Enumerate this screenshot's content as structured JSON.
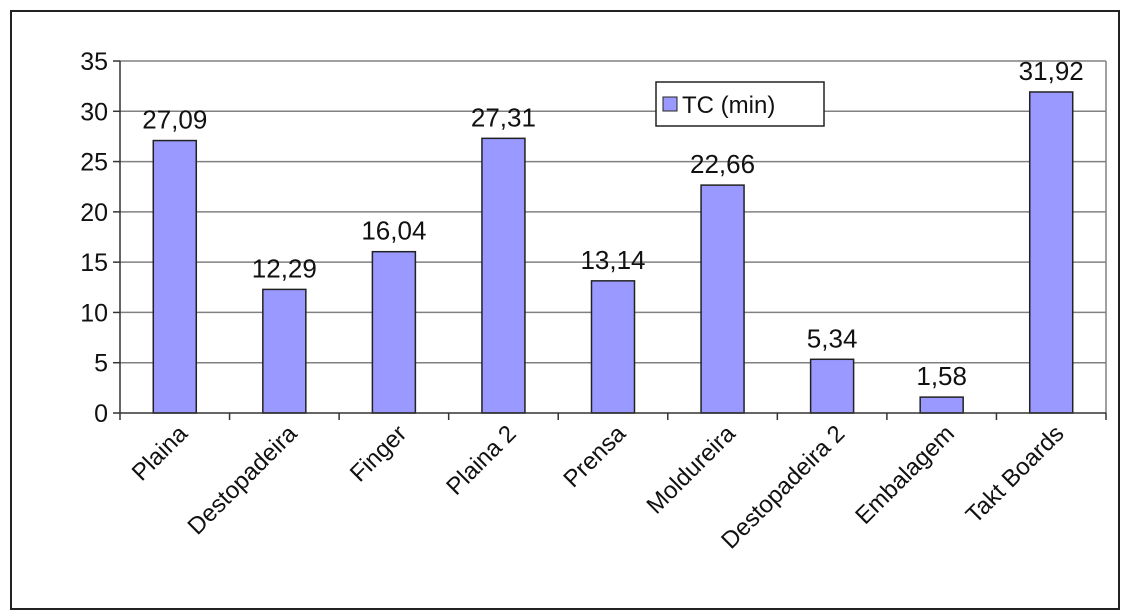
{
  "chart_data": {
    "type": "bar",
    "categories": [
      "Plaina",
      "Destopadeira",
      "Finger",
      "Plaina 2",
      "Prensa",
      "Moldureira",
      "Destopadeira 2",
      "Embalagem",
      "Takt Boards"
    ],
    "series": [
      {
        "name": "TC (min)",
        "values": [
          27.09,
          12.29,
          16.04,
          27.31,
          13.14,
          22.66,
          5.34,
          1.58,
          31.92
        ],
        "data_labels": [
          "27,09",
          "12,29",
          "16,04",
          "27,31",
          "13,14",
          "22,66",
          "5,34",
          "1,58",
          "31,92"
        ]
      }
    ],
    "ylim": [
      0,
      35
    ],
    "yticks": [
      0,
      5,
      10,
      15,
      20,
      25,
      30,
      35
    ],
    "grid": true,
    "legend": "top-center",
    "colors": {
      "bar_fill": "#9999ff",
      "bar_stroke": "#222222",
      "grid": "#808080",
      "axis": "#333333"
    }
  }
}
